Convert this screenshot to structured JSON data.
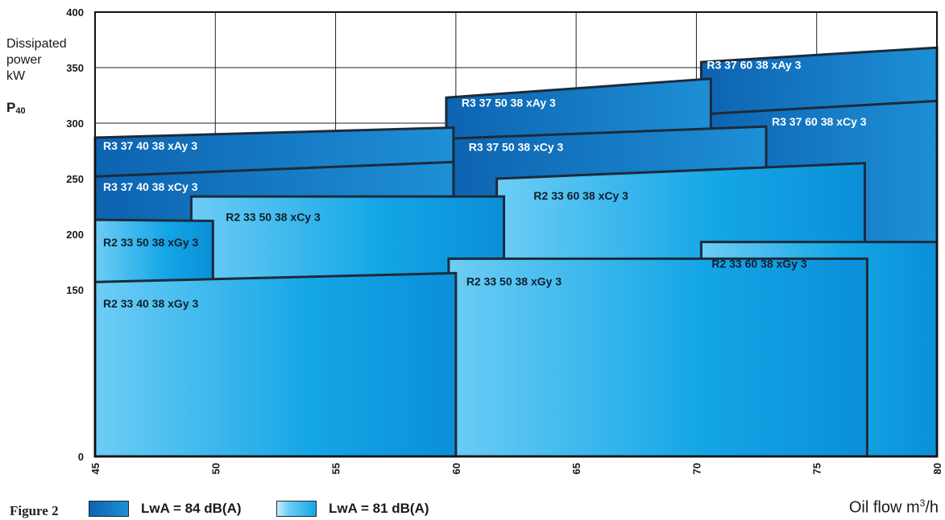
{
  "figure_label": "Figure 2",
  "x_title": {
    "text": "Oil flow m",
    "sup": "3",
    "suffix": "/h"
  },
  "y_title": {
    "line1": "Dissipated",
    "line2": "power",
    "line3": "kW",
    "symbol": "P",
    "symbol_sub": "40"
  },
  "legend": [
    {
      "label": "LwA = 84 dB(A)",
      "color_start": "#0d63b0",
      "color_end": "#1e8fd6"
    },
    {
      "label": "LwA = 81 dB(A)",
      "color_start": "#6dcdf5",
      "color_end": "#14a6e6"
    }
  ],
  "chart_data": {
    "type": "area",
    "xlim": [
      45,
      80
    ],
    "ylim": [
      0,
      400
    ],
    "x_ticks": [
      "45",
      "50",
      "55",
      "60",
      "65",
      "70",
      "75",
      "80"
    ],
    "y_ticks": [
      "0",
      "150",
      "200",
      "250",
      "300",
      "350",
      "400"
    ],
    "y_tick_values": [
      0,
      150,
      200,
      250,
      300,
      350,
      400
    ],
    "grid": true,
    "regions": [
      {
        "label": "R3 37 60 38 xAy 3",
        "group": "84",
        "x0": 70.2,
        "x1": 80,
        "y_left": 355,
        "y_right": 368,
        "label_x": 70.3,
        "label_y": 349
      },
      {
        "label": "R3 37 60 38 xCy 3",
        "group": "84",
        "x0": 70.2,
        "x1": 80,
        "y_left": 308,
        "y_right": 320,
        "label_x": 73,
        "label_y": 298
      },
      {
        "label": "R3 37 50 38 xAy 3",
        "group": "84",
        "x0": 59.6,
        "x1": 70.6,
        "y_left": 323,
        "y_right": 340,
        "label_x": 60.1,
        "label_y": 315
      },
      {
        "label": "R3 37 50 38 xCy 3",
        "group": "84",
        "x0": 59.6,
        "x1": 72.9,
        "y_left": 286,
        "y_right": 297,
        "label_x": 60.4,
        "label_y": 275
      },
      {
        "label": "R3 37 40 38 xAy 3",
        "group": "84",
        "x0": 45,
        "x1": 59.9,
        "y_left": 287,
        "y_right": 296,
        "label_x": 45.2,
        "label_y": 276
      },
      {
        "label": "R3 37 40 38 xCy 3",
        "group": "84",
        "x0": 45,
        "x1": 59.9,
        "y_left": 252,
        "y_right": 265,
        "label_x": 45.2,
        "label_y": 239
      },
      {
        "label": "R2 33 60 38 xCy 3",
        "group": "81",
        "x0": 61.7,
        "x1": 77,
        "y_left": 250,
        "y_right": 264,
        "label_x": 63.1,
        "label_y": 231
      },
      {
        "label": "R2 33 50 38 xCy 3",
        "group": "81",
        "x0": 49,
        "x1": 62,
        "y_left": 234,
        "y_right": 234,
        "label_x": 50.3,
        "label_y": 212
      },
      {
        "label": "R2 33 50 38 xGy 3",
        "group": "81",
        "x0": 45,
        "x1": 49.9,
        "y_left": 213,
        "y_right": 212,
        "label_x": 45.2,
        "label_y": 189
      },
      {
        "label": "R2 33 60 38 xGy 3",
        "group": "81",
        "x0": 70.2,
        "x1": 80,
        "y_left": 193,
        "y_right": 193,
        "label_x": 70.5,
        "label_y": 170
      },
      {
        "label": "R2 33 50 38 xGy 3",
        "group": "81",
        "x0": 59.7,
        "x1": 77.1,
        "y_left": 178,
        "y_right": 178,
        "label_x": 60.3,
        "label_y": 154
      },
      {
        "label": "R2 33 40 38 xGy 3",
        "group": "81",
        "x0": 45,
        "x1": 60,
        "y_left": 157,
        "y_right": 165,
        "label_x": 45.2,
        "label_y": 134
      }
    ]
  }
}
